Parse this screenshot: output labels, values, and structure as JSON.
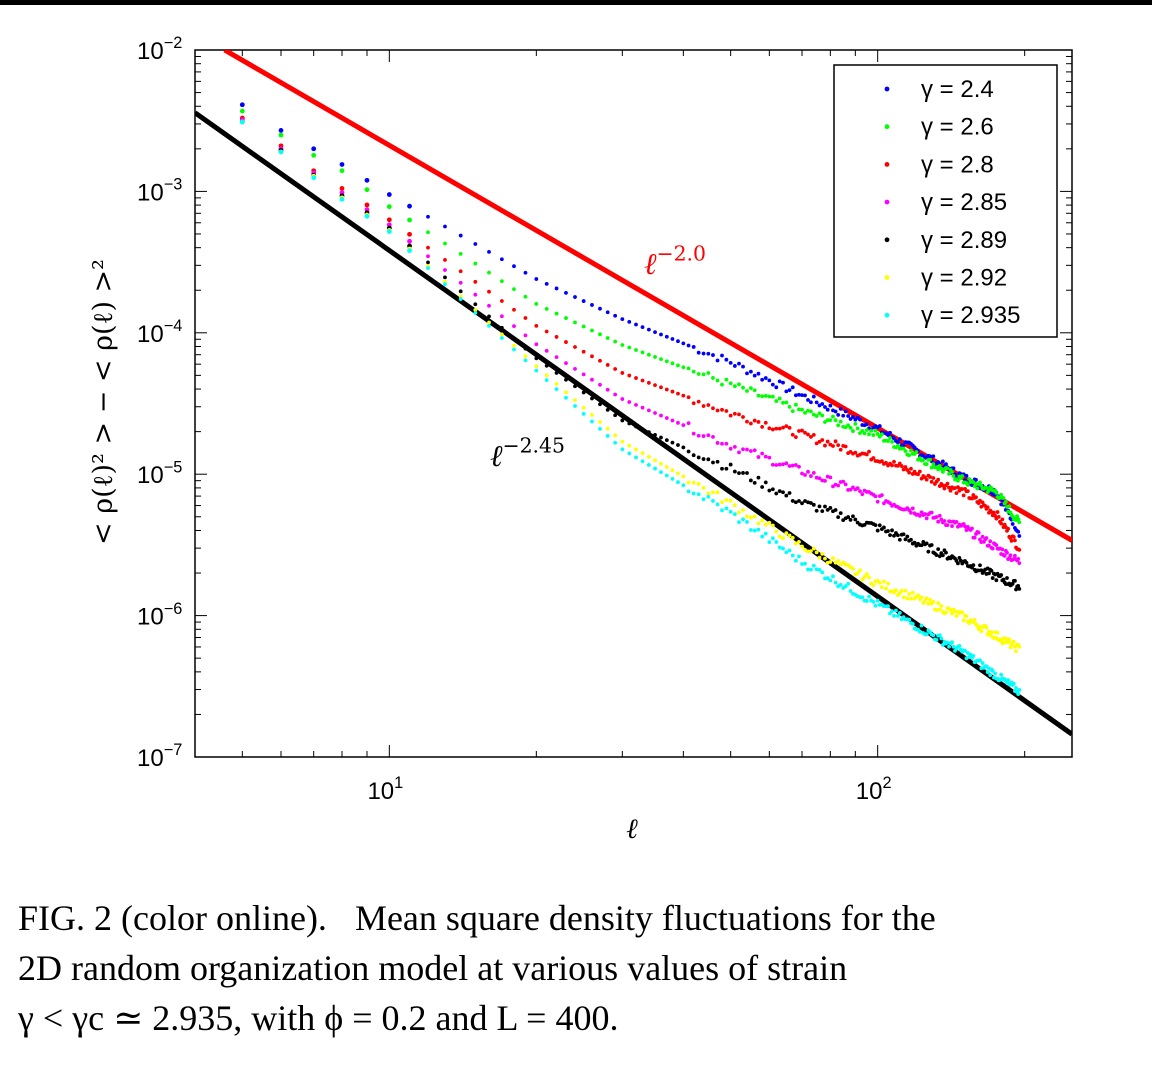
{
  "chart_data": {
    "type": "scatter",
    "xscale": "log",
    "yscale": "log",
    "xlim": [
      4,
      250
    ],
    "ylim": [
      1e-07,
      0.01
    ],
    "xlabel": "ℓ",
    "ylabel": "< ρ(ℓ)² > − < ρ(ℓ) >²",
    "x_ticks": [
      {
        "value": 10,
        "base": "10",
        "exp": "1"
      },
      {
        "value": 100,
        "base": "10",
        "exp": "2"
      }
    ],
    "y_ticks": [
      {
        "value": 0.01,
        "base": "10",
        "exp": "−2"
      },
      {
        "value": 0.001,
        "base": "10",
        "exp": "−3"
      },
      {
        "value": 0.0001,
        "base": "10",
        "exp": "−4"
      },
      {
        "value": 1e-05,
        "base": "10",
        "exp": "−5"
      },
      {
        "value": 1e-06,
        "base": "10",
        "exp": "−6"
      },
      {
        "value": 1e-07,
        "base": "10",
        "exp": "−7"
      }
    ],
    "legend_position": "top-right",
    "series": [
      {
        "name": "γ = 2.4",
        "color": "#0000ff",
        "points": [
          [
            5,
            0.0041
          ],
          [
            6,
            0.0027
          ],
          [
            7,
            0.002
          ],
          [
            8,
            0.00155
          ],
          [
            10,
            0.00095
          ],
          [
            20,
            0.00024
          ],
          [
            30,
            0.000125
          ],
          [
            50,
            6.2e-05
          ],
          [
            70,
            3.6e-05
          ],
          [
            100,
            2.1e-05
          ],
          [
            150,
            9.5e-06
          ],
          [
            175,
            7.5e-06
          ],
          [
            195,
            3.9e-06
          ]
        ]
      },
      {
        "name": "γ = 2.6",
        "color": "#00ff00",
        "points": [
          [
            5,
            0.0037
          ],
          [
            6,
            0.0025
          ],
          [
            7,
            0.0018
          ],
          [
            8,
            0.0014
          ],
          [
            10,
            0.00078
          ],
          [
            20,
            0.00016
          ],
          [
            30,
            8.2e-05
          ],
          [
            50,
            4.3e-05
          ],
          [
            70,
            2.8e-05
          ],
          [
            100,
            1.9e-05
          ],
          [
            150,
            9e-06
          ],
          [
            175,
            7.5e-06
          ],
          [
            195,
            4.5e-06
          ]
        ]
      },
      {
        "name": "γ = 2.8",
        "color": "#ff0000",
        "points": [
          [
            5,
            0.0033
          ],
          [
            6,
            0.0021
          ],
          [
            7,
            0.0014
          ],
          [
            8,
            0.00105
          ],
          [
            10,
            0.00063
          ],
          [
            20,
            0.000112
          ],
          [
            30,
            5.2e-05
          ],
          [
            50,
            2.7e-05
          ],
          [
            70,
            1.9e-05
          ],
          [
            100,
            1.3e-05
          ],
          [
            150,
            7.5e-06
          ],
          [
            175,
            5.2e-06
          ],
          [
            195,
            3e-06
          ]
        ]
      },
      {
        "name": "γ = 2.85",
        "color": "#ff00ff",
        "points": [
          [
            5,
            0.0032
          ],
          [
            6,
            0.002
          ],
          [
            7,
            0.00135
          ],
          [
            8,
            0.00098
          ],
          [
            10,
            0.00058
          ],
          [
            20,
            8.3e-05
          ],
          [
            30,
            3.4e-05
          ],
          [
            50,
            1.6e-05
          ],
          [
            70,
            1.05e-05
          ],
          [
            100,
            6.8e-06
          ],
          [
            150,
            4.2e-06
          ],
          [
            195,
            2.4e-06
          ]
        ]
      },
      {
        "name": "γ = 2.89",
        "color": "#000000",
        "points": [
          [
            5,
            0.0031
          ],
          [
            6,
            0.00195
          ],
          [
            7,
            0.0013
          ],
          [
            8,
            0.00093
          ],
          [
            10,
            0.00055
          ],
          [
            20,
            6.6e-05
          ],
          [
            30,
            2.4e-05
          ],
          [
            50,
            1.1e-05
          ],
          [
            70,
            6.3e-06
          ],
          [
            100,
            4.2e-06
          ],
          [
            150,
            2.4e-06
          ],
          [
            195,
            1.6e-06
          ]
        ]
      },
      {
        "name": "γ = 2.92",
        "color": "#ffff00",
        "points": [
          [
            5,
            0.0031
          ],
          [
            6,
            0.0019
          ],
          [
            7,
            0.00128
          ],
          [
            8,
            0.0009
          ],
          [
            10,
            0.00053
          ],
          [
            20,
            5.8e-05
          ],
          [
            30,
            1.7e-05
          ],
          [
            50,
            6.2e-06
          ],
          [
            70,
            3.1e-06
          ],
          [
            100,
            1.7e-06
          ],
          [
            150,
            9.8e-07
          ],
          [
            195,
            5.8e-07
          ]
        ]
      },
      {
        "name": "γ = 2.935",
        "color": "#00ffff",
        "points": [
          [
            5,
            0.0031
          ],
          [
            6,
            0.0019
          ],
          [
            7,
            0.00125
          ],
          [
            8,
            0.00088
          ],
          [
            10,
            0.00052
          ],
          [
            20,
            5.4e-05
          ],
          [
            30,
            1.5e-05
          ],
          [
            50,
            5.3e-06
          ],
          [
            70,
            2.4e-06
          ],
          [
            100,
            1.2e-06
          ],
          [
            150,
            5.5e-07
          ],
          [
            195,
            2.9e-07
          ]
        ]
      }
    ],
    "reference_lines": [
      {
        "label_base": "ℓ",
        "label_exp": "−2.0",
        "color": "#ff0000",
        "slope": -2.0,
        "x1": 4.6,
        "y1": 0.01,
        "x2": 250,
        "y2": 3.4e-06
      },
      {
        "label_base": "ℓ",
        "label_exp": "−2.45",
        "color": "#000000",
        "slope": -2.45,
        "x1": 4,
        "y1": 0.0036,
        "x2": 250,
        "y2": 1.45e-07
      }
    ]
  },
  "caption": {
    "line1_a": "FIG. 2 (color online).",
    "line1_b": "Mean square density fluctuations for the",
    "line2": "2D random organization model at various values of strain",
    "line3": "γ < γc ≃ 2.935, with ϕ = 0.2 and L = 400."
  }
}
